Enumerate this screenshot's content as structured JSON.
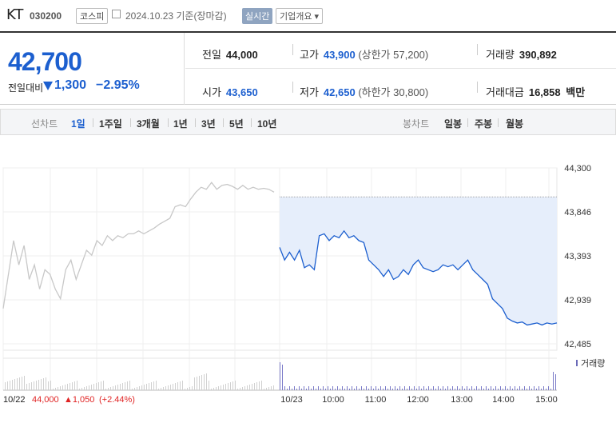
{
  "header": {
    "name": "KT",
    "code": "030200",
    "market": "코스피",
    "date_text": "2024.10.23 기준(장마감)",
    "realtime_label": "실시간",
    "company_info_label": "기업개요 ▾"
  },
  "quote": {
    "price": "42,700",
    "change_label": "전일대비",
    "change_value": "1,300",
    "change_pct": "−2.95%",
    "prev_close_label": "전일",
    "prev_close": "44,000",
    "high_label": "고가",
    "high": "43,900",
    "upper_limit": "(상한가 57,200)",
    "volume_label": "거래량",
    "volume": "390,892",
    "open_label": "시가",
    "open": "43,650",
    "low_label": "저가",
    "low": "42,650",
    "lower_limit": "(하한가 30,800)",
    "amount_label": "거래대금",
    "amount": "16,858",
    "amount_unit": "백만"
  },
  "tabs": {
    "line_chart": "선차트",
    "periods": [
      "1일",
      "1주일",
      "3개월",
      "1년",
      "3년",
      "5년",
      "10년"
    ],
    "candle_chart": "봉차트",
    "candle_periods": [
      "일봉",
      "주봉",
      "월봉"
    ]
  },
  "footer": {
    "prev_date": "10/22",
    "prev_price": "44,000",
    "prev_change": "▲1,050",
    "prev_pct": "(+2.44%)"
  },
  "colors": {
    "accent": "#1c5fcf",
    "rise": "#e02424",
    "fill": "#e6eefb",
    "prev_line": "#c8c8c8"
  },
  "chart_data": {
    "type": "line",
    "yticks": [
      "44,300",
      "43,846",
      "43,393",
      "42,939",
      "42,485"
    ],
    "ylim": [
      42485,
      44300
    ],
    "xticks": [
      "10/23",
      "10:00",
      "11:00",
      "12:00",
      "13:00",
      "14:00",
      "15:00"
    ],
    "volume_label": "거래량",
    "reference_price": 44000,
    "series": [
      {
        "name": "10/22",
        "points": [
          42850,
          43200,
          43550,
          43300,
          43500,
          43150,
          43300,
          43050,
          43250,
          43200,
          43050,
          42950,
          43250,
          43350,
          43150,
          43300,
          43450,
          43400,
          43550,
          43500,
          43600,
          43550,
          43600,
          43580,
          43620,
          43620,
          43650,
          43620,
          43650,
          43680,
          43720,
          43750,
          43780,
          43900,
          43920,
          43900,
          43980,
          44050,
          44100,
          44080,
          44150,
          44080,
          44120,
          44130,
          44110,
          44080,
          44120,
          44080,
          44100,
          44080,
          44090,
          44080,
          44050
        ]
      },
      {
        "name": "10/23",
        "points": [
          43480,
          43350,
          43430,
          43350,
          43450,
          43270,
          43300,
          43250,
          43600,
          43620,
          43550,
          43600,
          43580,
          43650,
          43580,
          43600,
          43550,
          43530,
          43350,
          43300,
          43250,
          43180,
          43250,
          43150,
          43180,
          43250,
          43200,
          43300,
          43350,
          43270,
          43250,
          43230,
          43250,
          43300,
          43280,
          43300,
          43250,
          43300,
          43350,
          43250,
          43200,
          43150,
          43100,
          42950,
          42900,
          42850,
          42750,
          42720,
          42700,
          42710,
          42680,
          42690,
          42700,
          42680,
          42700,
          42690,
          42700
        ]
      }
    ]
  }
}
